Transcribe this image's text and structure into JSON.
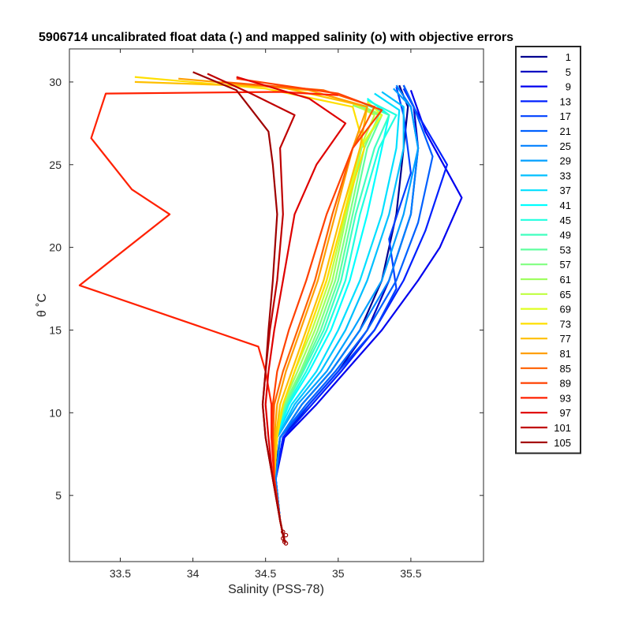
{
  "chart_data": {
    "type": "line",
    "title": "5906714 uncalibrated float data (-) and mapped salinity (o) with objective errors",
    "xlabel": "Salinity (PSS-78)",
    "ylabel": "θ ˚C",
    "xlim": [
      33.15,
      36.0
    ],
    "ylim": [
      1.0,
      32.0
    ],
    "xticks": [
      33.5,
      34,
      34.5,
      35,
      35.5
    ],
    "xtick_labels": [
      "33.5",
      "34",
      "34.5",
      "35",
      "35.5"
    ],
    "yticks": [
      5,
      10,
      15,
      20,
      25,
      30
    ],
    "ytick_labels": [
      "5",
      "10",
      "15",
      "20",
      "25",
      "30"
    ],
    "grid": false,
    "legend_position": "outside-right",
    "colormap": "jet",
    "legend": [
      {
        "label": "1",
        "color": "#00008F"
      },
      {
        "label": "5",
        "color": "#0000BF"
      },
      {
        "label": "9",
        "color": "#0000EF"
      },
      {
        "label": "13",
        "color": "#0020FF"
      },
      {
        "label": "17",
        "color": "#0040FF"
      },
      {
        "label": "21",
        "color": "#0060FF"
      },
      {
        "label": "25",
        "color": "#0080FF"
      },
      {
        "label": "29",
        "color": "#009FFF"
      },
      {
        "label": "33",
        "color": "#00BFFF"
      },
      {
        "label": "37",
        "color": "#00DFFF"
      },
      {
        "label": "41",
        "color": "#00FFFF"
      },
      {
        "label": "45",
        "color": "#20FFDF"
      },
      {
        "label": "49",
        "color": "#40FFBF"
      },
      {
        "label": "53",
        "color": "#60FF9F"
      },
      {
        "label": "57",
        "color": "#80FF80"
      },
      {
        "label": "61",
        "color": "#9FFF60"
      },
      {
        "label": "65",
        "color": "#BFFF40"
      },
      {
        "label": "69",
        "color": "#DFFF20"
      },
      {
        "label": "73",
        "color": "#FFDF00"
      },
      {
        "label": "77",
        "color": "#FFBF00"
      },
      {
        "label": "81",
        "color": "#FF9F00"
      },
      {
        "label": "85",
        "color": "#FF6000"
      },
      {
        "label": "89",
        "color": "#FF4000"
      },
      {
        "label": "93",
        "color": "#FF2000"
      },
      {
        "label": "97",
        "color": "#DF0000"
      },
      {
        "label": "101",
        "color": "#BF0000"
      },
      {
        "label": "105",
        "color": "#9F0000"
      }
    ],
    "series": [
      {
        "profile": 1,
        "color": "#00008F",
        "x": [
          34.63,
          34.6,
          34.56,
          34.6,
          34.75,
          34.95,
          35.15,
          35.3,
          35.4,
          35.45,
          35.48,
          35.42
        ],
        "y": [
          2.2,
          3.5,
          6.0,
          8.5,
          10.5,
          12.5,
          15.0,
          18.0,
          22.0,
          26.0,
          28.5,
          29.8
        ]
      },
      {
        "profile": 5,
        "color": "#0000BF",
        "x": [
          34.63,
          34.6,
          34.57,
          34.62,
          34.8,
          35.0,
          35.2,
          35.35,
          35.5,
          35.55,
          35.52,
          35.45
        ],
        "y": [
          2.2,
          3.5,
          6.0,
          8.5,
          10.5,
          12.5,
          15.0,
          18.0,
          22.0,
          26.0,
          28.5,
          29.8
        ]
      },
      {
        "profile": 9,
        "color": "#0000EF",
        "x": [
          34.63,
          34.6,
          34.57,
          34.63,
          34.85,
          35.05,
          35.3,
          35.55,
          35.7,
          35.85,
          35.6,
          35.5
        ],
        "y": [
          2.2,
          3.5,
          6.0,
          8.5,
          10.5,
          12.5,
          15.0,
          18.0,
          20.0,
          23.0,
          27.0,
          29.5
        ]
      },
      {
        "profile": 13,
        "color": "#0020FF",
        "x": [
          34.63,
          34.6,
          34.57,
          34.62,
          34.82,
          35.02,
          35.25,
          35.45,
          35.6,
          35.75,
          35.55,
          35.45
        ],
        "y": [
          2.2,
          3.5,
          6.0,
          8.5,
          10.5,
          12.5,
          15.0,
          18.0,
          21.0,
          25.0,
          28.0,
          29.6
        ]
      },
      {
        "profile": 17,
        "color": "#0040FF",
        "x": [
          34.63,
          34.6,
          34.57,
          34.6,
          34.8,
          35.0,
          35.25,
          35.4,
          35.35,
          35.5,
          35.45,
          35.4
        ],
        "y": [
          2.2,
          3.5,
          6.0,
          8.5,
          10.5,
          12.5,
          15.0,
          17.5,
          20.5,
          24.5,
          28.0,
          29.7
        ]
      },
      {
        "profile": 21,
        "color": "#0060FF",
        "x": [
          34.63,
          34.6,
          34.57,
          34.6,
          34.78,
          34.98,
          35.2,
          35.4,
          35.55,
          35.65,
          35.52,
          35.45
        ],
        "y": [
          2.2,
          3.5,
          6.0,
          8.5,
          10.5,
          12.5,
          15.0,
          18.0,
          21.5,
          25.5,
          28.5,
          29.8
        ]
      },
      {
        "profile": 25,
        "color": "#0080FF",
        "x": [
          34.63,
          34.6,
          34.57,
          34.6,
          34.75,
          34.95,
          35.15,
          35.35,
          35.5,
          35.55,
          35.5,
          35.4
        ],
        "y": [
          2.2,
          3.5,
          6.0,
          8.5,
          10.5,
          12.5,
          15.0,
          18.0,
          22.0,
          26.0,
          28.5,
          29.8
        ]
      },
      {
        "profile": 29,
        "color": "#009FFF",
        "x": [
          34.63,
          34.6,
          34.56,
          34.58,
          34.72,
          34.92,
          35.1,
          35.3,
          35.45,
          35.55,
          35.5,
          35.38
        ],
        "y": [
          2.2,
          3.5,
          6.0,
          8.5,
          10.5,
          12.5,
          15.0,
          18.0,
          22.0,
          26.0,
          28.5,
          29.6
        ]
      },
      {
        "profile": 33,
        "color": "#00BFFF",
        "x": [
          34.63,
          34.6,
          34.56,
          34.58,
          34.7,
          34.88,
          35.05,
          35.2,
          35.35,
          35.45,
          35.45,
          35.3
        ],
        "y": [
          2.2,
          3.5,
          6.0,
          8.5,
          10.5,
          12.5,
          15.0,
          18.0,
          22.0,
          26.0,
          28.5,
          29.4
        ]
      },
      {
        "profile": 37,
        "color": "#00DFFF",
        "x": [
          34.63,
          34.6,
          34.56,
          34.57,
          34.68,
          34.85,
          35.0,
          35.15,
          35.3,
          35.4,
          35.42,
          35.25
        ],
        "y": [
          2.2,
          3.5,
          6.0,
          8.5,
          10.5,
          12.5,
          15.0,
          18.0,
          22.0,
          26.0,
          28.3,
          29.3
        ]
      },
      {
        "profile": 41,
        "color": "#00FFFF",
        "x": [
          34.63,
          34.6,
          34.56,
          34.57,
          34.66,
          34.8,
          34.95,
          35.08,
          35.2,
          35.3,
          35.35,
          35.2
        ],
        "y": [
          2.2,
          3.5,
          6.0,
          8.5,
          10.5,
          12.5,
          15.0,
          18.0,
          22.0,
          26.0,
          28.0,
          29.0
        ]
      },
      {
        "profile": 45,
        "color": "#20FFDF",
        "x": [
          34.63,
          34.6,
          34.56,
          34.56,
          34.65,
          34.78,
          34.92,
          35.05,
          35.15,
          35.28,
          35.4,
          35.2
        ],
        "y": [
          2.2,
          3.5,
          6.0,
          8.5,
          10.5,
          12.5,
          15.0,
          18.0,
          22.0,
          26.0,
          28.0,
          28.9
        ]
      },
      {
        "profile": 49,
        "color": "#40FFBF",
        "x": [
          34.63,
          34.6,
          34.56,
          34.56,
          34.64,
          34.76,
          34.9,
          35.02,
          35.12,
          35.25,
          35.35,
          35.15
        ],
        "y": [
          2.2,
          3.5,
          6.0,
          8.5,
          10.5,
          12.5,
          15.0,
          18.0,
          22.0,
          26.0,
          28.0,
          28.8
        ]
      },
      {
        "profile": 53,
        "color": "#60FF9F",
        "x": [
          34.63,
          34.6,
          34.56,
          34.56,
          34.64,
          34.75,
          34.88,
          35.0,
          35.1,
          35.2,
          35.3,
          35.1
        ],
        "y": [
          2.2,
          3.5,
          6.0,
          8.5,
          10.5,
          12.5,
          15.0,
          18.0,
          22.0,
          26.0,
          28.0,
          28.7
        ]
      },
      {
        "profile": 57,
        "color": "#80FF80",
        "x": [
          34.63,
          34.6,
          34.56,
          34.56,
          34.63,
          34.74,
          34.86,
          34.98,
          35.08,
          35.18,
          35.28,
          35.1
        ],
        "y": [
          2.2,
          3.5,
          6.0,
          8.5,
          10.5,
          12.5,
          15.0,
          18.0,
          22.0,
          26.0,
          28.0,
          28.6
        ]
      },
      {
        "profile": 61,
        "color": "#9FFF60",
        "x": [
          34.63,
          34.6,
          34.56,
          34.56,
          34.62,
          34.72,
          34.84,
          34.96,
          35.06,
          35.16,
          35.3,
          35.15
        ],
        "y": [
          2.2,
          3.5,
          6.0,
          8.5,
          10.5,
          12.5,
          15.0,
          18.0,
          22.0,
          26.0,
          28.0,
          28.6
        ]
      },
      {
        "profile": 65,
        "color": "#BFFF40",
        "x": [
          34.63,
          34.6,
          34.56,
          34.56,
          34.62,
          34.7,
          34.82,
          34.94,
          35.05,
          35.15,
          35.25,
          35.1
        ],
        "y": [
          2.2,
          3.5,
          6.0,
          8.5,
          10.5,
          12.5,
          15.0,
          18.0,
          22.0,
          26.0,
          28.0,
          28.7
        ]
      },
      {
        "profile": 69,
        "color": "#DFFF20",
        "x": [
          34.63,
          34.6,
          34.56,
          34.57,
          34.62,
          34.7,
          34.8,
          34.92,
          35.04,
          35.15,
          35.3,
          35.2
        ],
        "y": [
          2.2,
          3.5,
          6.0,
          8.5,
          10.5,
          12.5,
          15.0,
          18.0,
          22.0,
          26.0,
          28.0,
          28.8
        ]
      },
      {
        "profile": 73,
        "color": "#FFDF00",
        "x": [
          34.63,
          34.6,
          34.56,
          34.58,
          34.62,
          34.7,
          34.8,
          34.92,
          35.04,
          35.18,
          35.1,
          34.5,
          33.6
        ],
        "y": [
          2.2,
          3.5,
          6.0,
          8.5,
          10.5,
          12.5,
          15.0,
          18.0,
          22.0,
          26.0,
          28.5,
          29.6,
          30.3
        ]
      },
      {
        "profile": 77,
        "color": "#FFBF00",
        "x": [
          34.63,
          34.6,
          34.56,
          34.57,
          34.6,
          34.68,
          34.78,
          34.9,
          35.02,
          35.15,
          35.2,
          34.6,
          33.6
        ],
        "y": [
          2.2,
          3.5,
          6.0,
          8.5,
          10.5,
          12.5,
          15.0,
          18.0,
          22.0,
          26.0,
          28.5,
          29.7,
          30.0
        ]
      },
      {
        "profile": 81,
        "color": "#FF9F00",
        "x": [
          34.63,
          34.6,
          34.56,
          34.56,
          34.58,
          34.64,
          34.74,
          34.86,
          34.98,
          35.1,
          35.2,
          34.8,
          33.9
        ],
        "y": [
          2.2,
          3.5,
          6.0,
          8.5,
          10.5,
          12.5,
          15.0,
          18.0,
          22.0,
          26.0,
          28.5,
          29.5,
          30.2
        ]
      },
      {
        "profile": 85,
        "color": "#FF6000",
        "x": [
          34.63,
          34.6,
          34.56,
          34.55,
          34.56,
          34.62,
          34.72,
          34.84,
          34.96,
          35.1,
          35.25,
          34.9,
          34.2
        ],
        "y": [
          2.2,
          3.5,
          6.0,
          8.5,
          10.5,
          12.5,
          15.0,
          18.0,
          22.0,
          26.0,
          28.5,
          29.5,
          30.0
        ]
      },
      {
        "profile": 89,
        "color": "#FF4000",
        "x": [
          34.63,
          34.6,
          34.56,
          34.55,
          34.55,
          34.58,
          34.66,
          34.78,
          34.92,
          35.1,
          35.3,
          35.0,
          34.3
        ],
        "y": [
          2.2,
          3.5,
          6.0,
          8.5,
          10.5,
          12.5,
          15.0,
          18.0,
          22.0,
          26.0,
          28.3,
          29.3,
          30.2
        ]
      },
      {
        "profile": 93,
        "color": "#FF2000",
        "x": [
          34.63,
          34.6,
          34.56,
          34.54,
          34.54,
          34.5,
          34.45,
          33.22,
          33.84,
          33.58,
          33.3,
          33.4,
          34.6,
          35.0
        ],
        "y": [
          2.2,
          3.5,
          6.0,
          8.5,
          10.5,
          12.5,
          14.0,
          17.7,
          22.0,
          23.5,
          26.6,
          29.3,
          29.4,
          29.2
        ]
      },
      {
        "profile": 97,
        "color": "#DF0000",
        "x": [
          34.63,
          34.6,
          34.55,
          34.52,
          34.5,
          34.52,
          34.56,
          34.62,
          34.7,
          34.85,
          35.05,
          34.8,
          34.3
        ],
        "y": [
          2.2,
          3.5,
          6.0,
          8.5,
          10.5,
          12.5,
          15.0,
          18.0,
          22.0,
          25.0,
          27.5,
          29.0,
          30.3
        ]
      },
      {
        "profile": 101,
        "color": "#BF0000",
        "x": [
          34.63,
          34.6,
          34.55,
          34.5,
          34.48,
          34.5,
          34.53,
          34.58,
          34.62,
          34.6,
          34.7,
          34.4,
          34.1
        ],
        "y": [
          2.2,
          3.5,
          6.0,
          8.5,
          10.5,
          12.5,
          15.0,
          18.0,
          22.0,
          26.0,
          28.0,
          29.3,
          30.5
        ]
      },
      {
        "profile": 105,
        "color": "#9F0000",
        "x": [
          34.63,
          34.6,
          34.55,
          34.5,
          34.48,
          34.5,
          34.52,
          34.55,
          34.58,
          34.55,
          34.52,
          34.3,
          34.0
        ],
        "y": [
          2.2,
          3.5,
          6.0,
          8.5,
          10.5,
          12.5,
          15.0,
          18.0,
          22.0,
          25.0,
          27.0,
          29.5,
          30.6
        ]
      }
    ]
  }
}
